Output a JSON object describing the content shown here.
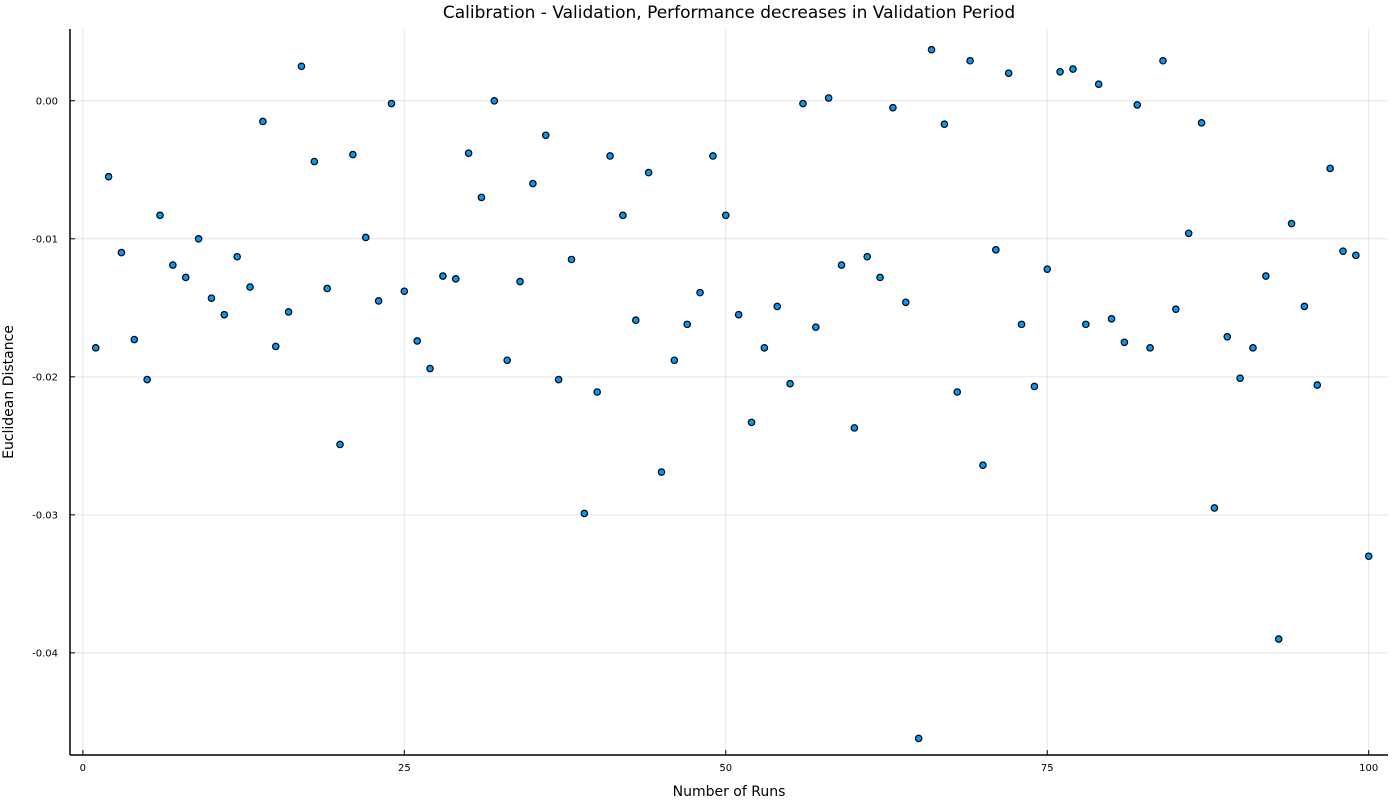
{
  "chart_data": {
    "type": "scatter",
    "title": "Calibration - Validation, Performance decreases in Validation Period",
    "xlabel": "Number of Runs",
    "ylabel": "Euclidean Distance",
    "xlim": [
      -1,
      101.5
    ],
    "ylim": [
      -0.0474,
      0.0052
    ],
    "xticks": [
      0,
      25,
      50,
      75,
      100
    ],
    "xtick_labels": [
      "0",
      "25",
      "50",
      "75",
      "100"
    ],
    "yticks": [
      0.0,
      -0.01,
      -0.02,
      -0.03,
      -0.04
    ],
    "ytick_labels": [
      "0.00",
      "-0.01",
      "-0.02",
      "-0.03",
      "-0.04"
    ],
    "grid": true,
    "legend": "none",
    "marker_color": "#009AFA",
    "series": [
      {
        "x": [
          1,
          2,
          3,
          4,
          5,
          6,
          7,
          8,
          9,
          10,
          11,
          12,
          13,
          14,
          15,
          16,
          17,
          18,
          19,
          20,
          21,
          22,
          23,
          24,
          25,
          26,
          27,
          28,
          29,
          30,
          31,
          32,
          33,
          34,
          35,
          36,
          37,
          38,
          39,
          40,
          41,
          42,
          43,
          44,
          45,
          46,
          47,
          48,
          49,
          50,
          51,
          52,
          53,
          54,
          55,
          56,
          57,
          58,
          59,
          60,
          61,
          62,
          63,
          64,
          65,
          66,
          67,
          68,
          69,
          70,
          71,
          72,
          73,
          74,
          75,
          76,
          77,
          78,
          79,
          80,
          81,
          82,
          83,
          84,
          85,
          86,
          87,
          88,
          89,
          90,
          91,
          92,
          93,
          94,
          95,
          96,
          97,
          98,
          99,
          100
        ],
        "y": [
          -0.0179,
          -0.0055,
          -0.011,
          -0.0173,
          -0.0202,
          -0.0083,
          -0.0119,
          -0.0128,
          -0.01,
          -0.0143,
          -0.0155,
          -0.0113,
          -0.0135,
          -0.0015,
          -0.0178,
          -0.0153,
          0.0025,
          -0.0044,
          -0.0136,
          -0.0249,
          -0.0039,
          -0.0099,
          -0.0145,
          -0.0002,
          -0.0138,
          -0.0174,
          -0.0194,
          -0.0127,
          -0.0129,
          -0.0038,
          -0.007,
          0.0,
          -0.0188,
          -0.0131,
          -0.006,
          -0.0025,
          -0.0202,
          -0.0115,
          -0.0299,
          -0.0211,
          -0.004,
          -0.0083,
          -0.0159,
          -0.0052,
          -0.0269,
          -0.0188,
          -0.0162,
          -0.0139,
          -0.004,
          -0.0083,
          -0.0155,
          -0.0233,
          -0.0179,
          -0.0149,
          -0.0205,
          -0.0002,
          -0.0164,
          0.0002,
          -0.0119,
          -0.0237,
          -0.0113,
          -0.0128,
          -0.0005,
          -0.0146,
          -0.0462,
          0.0037,
          -0.0017,
          -0.0211,
          0.0029,
          -0.0264,
          -0.0108,
          0.002,
          -0.0162,
          -0.0207,
          -0.0122,
          0.0021,
          0.0023,
          -0.0162,
          0.0012,
          -0.0158,
          -0.0175,
          -0.0003,
          -0.0179,
          0.0029,
          -0.0151,
          -0.0096,
          -0.0016,
          -0.0295,
          -0.0171,
          -0.0201,
          -0.0179,
          -0.0127,
          -0.039,
          -0.0089,
          -0.0149,
          -0.0206,
          -0.0049,
          -0.0109,
          -0.0112,
          -0.033
        ]
      }
    ]
  }
}
